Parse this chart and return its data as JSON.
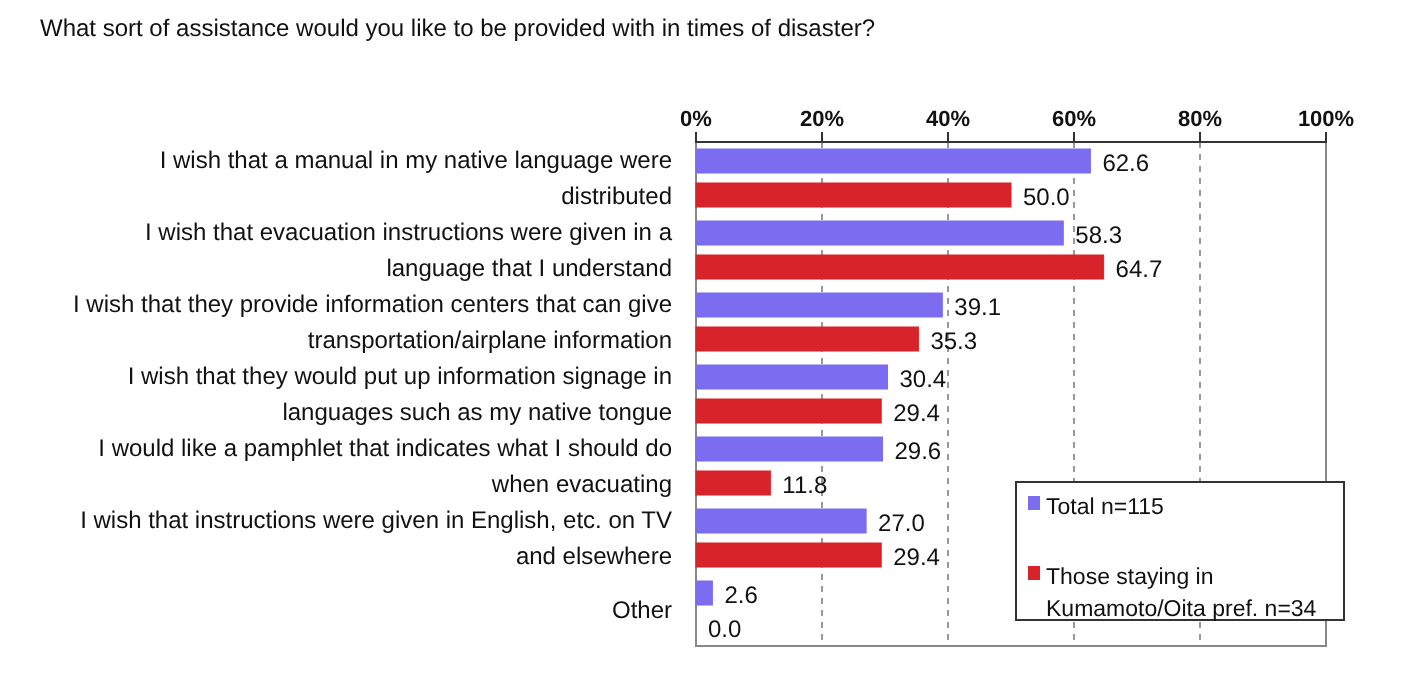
{
  "chart_data": {
    "type": "bar",
    "orientation": "horizontal",
    "title": "What sort of assistance would you like to be provided with in times of disaster?",
    "categories": [
      "I wish that a manual in my native language were distributed",
      "I wish that evacuation instructions were given in a language that I understand",
      "I wish that they provide information centers that can give transportation/airplane information",
      "I wish that they would put up information signage in languages such as my native tongue",
      "I would like a pamphlet that indicates what I should do when evacuating",
      "I wish that instructions were given in English, etc. on TV and elsewhere",
      "Other"
    ],
    "series": [
      {
        "name": "Total n=115",
        "color": "#7b6cf0",
        "values": [
          62.6,
          58.3,
          39.1,
          30.4,
          29.6,
          27.0,
          2.6
        ],
        "value_labels": [
          "62.6",
          "58.3",
          "39.1",
          "30.4",
          "29.6",
          "27.0",
          "2.6"
        ]
      },
      {
        "name": "Those staying in Kumamoto/Oita pref. n=34",
        "color": "#d8232b",
        "values": [
          50.0,
          64.7,
          35.3,
          29.4,
          11.8,
          29.4,
          0.0
        ],
        "value_labels": [
          "50.0",
          "64.7",
          "35.3",
          "29.4",
          "11.8",
          "29.4",
          "0.0"
        ]
      }
    ],
    "xlim": [
      0,
      100
    ],
    "xticks": [
      {
        "value": 0,
        "label": "0%"
      },
      {
        "value": 20,
        "label": "20%"
      },
      {
        "value": 40,
        "label": "40%"
      },
      {
        "value": 60,
        "label": "60%"
      },
      {
        "value": 80,
        "label": "80%"
      },
      {
        "value": 100,
        "label": "100%"
      }
    ],
    "grid": "x",
    "legend": "bottom right"
  }
}
